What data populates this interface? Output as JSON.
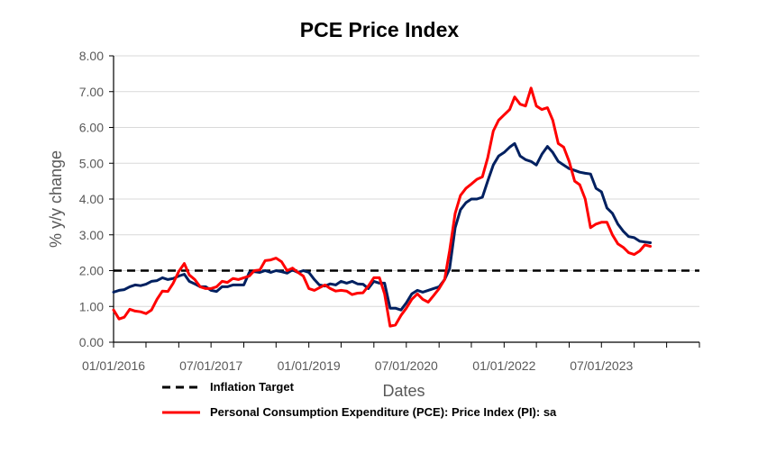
{
  "chart_data": {
    "type": "line",
    "title": "PCE Price Index",
    "xlabel": "Dates",
    "ylabel": "% y/y change",
    "ylim": [
      0,
      8
    ],
    "yticks": [
      "0.00",
      "1.00",
      "2.00",
      "3.00",
      "4.00",
      "5.00",
      "6.00",
      "7.00",
      "8.00"
    ],
    "xticks": [
      {
        "date": "2016-01-01",
        "label": "01/01/2016"
      },
      {
        "date": "2017-07-01",
        "label": "07/01/2017"
      },
      {
        "date": "2019-01-01",
        "label": "01/01/2019"
      },
      {
        "date": "2020-07-01",
        "label": "07/01/2020"
      },
      {
        "date": "2022-01-01",
        "label": "01/01/2022"
      },
      {
        "date": "2023-07-01",
        "label": "07/01/2023"
      }
    ],
    "xlim": [
      "2016-01-01",
      "2025-01-01"
    ],
    "grid": "horizontal",
    "legend_position": "bottom",
    "series": [
      {
        "name": "Inflation Target",
        "color": "#000000",
        "style": "dashed",
        "values": [
          [
            "2016-01-01",
            2.0
          ],
          [
            "2025-01-01",
            2.0
          ]
        ]
      },
      {
        "name": "Personal Consumption Expenditure (PCE): Price Index (PI): sa",
        "color": "#ff0000",
        "style": "solid",
        "values": [
          [
            "2016-01-01",
            0.9
          ],
          [
            "2016-02-01",
            0.65
          ],
          [
            "2016-03-01",
            0.7
          ],
          [
            "2016-04-01",
            0.92
          ],
          [
            "2016-05-01",
            0.87
          ],
          [
            "2016-06-01",
            0.85
          ],
          [
            "2016-07-01",
            0.8
          ],
          [
            "2016-08-01",
            0.9
          ],
          [
            "2016-09-01",
            1.2
          ],
          [
            "2016-10-01",
            1.43
          ],
          [
            "2016-11-01",
            1.42
          ],
          [
            "2016-12-01",
            1.65
          ],
          [
            "2017-01-01",
            1.98
          ],
          [
            "2017-02-01",
            2.2
          ],
          [
            "2017-03-01",
            1.88
          ],
          [
            "2017-04-01",
            1.75
          ],
          [
            "2017-05-01",
            1.55
          ],
          [
            "2017-06-01",
            1.5
          ],
          [
            "2017-07-01",
            1.5
          ],
          [
            "2017-08-01",
            1.55
          ],
          [
            "2017-09-01",
            1.7
          ],
          [
            "2017-10-01",
            1.67
          ],
          [
            "2017-11-01",
            1.78
          ],
          [
            "2017-12-01",
            1.75
          ],
          [
            "2018-01-01",
            1.8
          ],
          [
            "2018-02-01",
            1.85
          ],
          [
            "2018-03-01",
            2.0
          ],
          [
            "2018-04-01",
            2.02
          ],
          [
            "2018-05-01",
            2.28
          ],
          [
            "2018-06-01",
            2.3
          ],
          [
            "2018-07-01",
            2.35
          ],
          [
            "2018-08-01",
            2.25
          ],
          [
            "2018-09-01",
            2.0
          ],
          [
            "2018-10-01",
            2.07
          ],
          [
            "2018-11-01",
            1.95
          ],
          [
            "2018-12-01",
            1.85
          ],
          [
            "2019-01-01",
            1.5
          ],
          [
            "2019-02-01",
            1.45
          ],
          [
            "2019-03-01",
            1.52
          ],
          [
            "2019-04-01",
            1.6
          ],
          [
            "2019-05-01",
            1.5
          ],
          [
            "2019-06-01",
            1.43
          ],
          [
            "2019-07-01",
            1.45
          ],
          [
            "2019-08-01",
            1.43
          ],
          [
            "2019-09-01",
            1.33
          ],
          [
            "2019-10-01",
            1.37
          ],
          [
            "2019-11-01",
            1.38
          ],
          [
            "2019-12-01",
            1.57
          ],
          [
            "2020-01-01",
            1.8
          ],
          [
            "2020-02-01",
            1.8
          ],
          [
            "2020-03-01",
            1.35
          ],
          [
            "2020-04-01",
            0.45
          ],
          [
            "2020-05-01",
            0.48
          ],
          [
            "2020-06-01",
            0.75
          ],
          [
            "2020-07-01",
            0.95
          ],
          [
            "2020-08-01",
            1.2
          ],
          [
            "2020-09-01",
            1.35
          ],
          [
            "2020-10-01",
            1.2
          ],
          [
            "2020-11-01",
            1.12
          ],
          [
            "2020-12-01",
            1.3
          ],
          [
            "2021-01-01",
            1.5
          ],
          [
            "2021-02-01",
            1.75
          ],
          [
            "2021-03-01",
            2.55
          ],
          [
            "2021-04-01",
            3.6
          ],
          [
            "2021-05-01",
            4.1
          ],
          [
            "2021-06-01",
            4.3
          ],
          [
            "2021-07-01",
            4.42
          ],
          [
            "2021-08-01",
            4.55
          ],
          [
            "2021-09-01",
            4.62
          ],
          [
            "2021-10-01",
            5.15
          ],
          [
            "2021-11-01",
            5.9
          ],
          [
            "2021-12-01",
            6.2
          ],
          [
            "2022-01-01",
            6.35
          ],
          [
            "2022-02-01",
            6.5
          ],
          [
            "2022-03-01",
            6.85
          ],
          [
            "2022-04-01",
            6.65
          ],
          [
            "2022-05-01",
            6.6
          ],
          [
            "2022-06-01",
            7.1
          ],
          [
            "2022-07-01",
            6.6
          ],
          [
            "2022-08-01",
            6.5
          ],
          [
            "2022-09-01",
            6.55
          ],
          [
            "2022-10-01",
            6.2
          ],
          [
            "2022-11-01",
            5.55
          ],
          [
            "2022-12-01",
            5.45
          ],
          [
            "2023-01-01",
            5.05
          ],
          [
            "2023-02-01",
            4.5
          ],
          [
            "2023-03-01",
            4.4
          ],
          [
            "2023-04-01",
            4.0
          ],
          [
            "2023-05-01",
            3.2
          ],
          [
            "2023-06-01",
            3.3
          ],
          [
            "2023-07-01",
            3.35
          ],
          [
            "2023-08-01",
            3.35
          ],
          [
            "2023-09-01",
            3.0
          ],
          [
            "2023-10-01",
            2.75
          ],
          [
            "2023-11-01",
            2.65
          ],
          [
            "2023-12-01",
            2.5
          ],
          [
            "2024-01-01",
            2.45
          ],
          [
            "2024-02-01",
            2.55
          ],
          [
            "2024-03-01",
            2.72
          ],
          [
            "2024-04-01",
            2.68
          ]
        ]
      },
      {
        "name": "",
        "color": "#002060",
        "style": "solid",
        "values": [
          [
            "2016-01-01",
            1.4
          ],
          [
            "2016-02-01",
            1.45
          ],
          [
            "2016-03-01",
            1.47
          ],
          [
            "2016-04-01",
            1.55
          ],
          [
            "2016-05-01",
            1.6
          ],
          [
            "2016-06-01",
            1.58
          ],
          [
            "2016-07-01",
            1.62
          ],
          [
            "2016-08-01",
            1.7
          ],
          [
            "2016-09-01",
            1.72
          ],
          [
            "2016-10-01",
            1.8
          ],
          [
            "2016-11-01",
            1.75
          ],
          [
            "2016-12-01",
            1.78
          ],
          [
            "2017-01-01",
            1.85
          ],
          [
            "2017-02-01",
            1.9
          ],
          [
            "2017-03-01",
            1.7
          ],
          [
            "2017-04-01",
            1.63
          ],
          [
            "2017-05-01",
            1.55
          ],
          [
            "2017-06-01",
            1.55
          ],
          [
            "2017-07-01",
            1.45
          ],
          [
            "2017-08-01",
            1.42
          ],
          [
            "2017-09-01",
            1.55
          ],
          [
            "2017-10-01",
            1.55
          ],
          [
            "2017-11-01",
            1.6
          ],
          [
            "2017-12-01",
            1.6
          ],
          [
            "2018-01-01",
            1.6
          ],
          [
            "2018-02-01",
            1.95
          ],
          [
            "2018-03-01",
            1.97
          ],
          [
            "2018-04-01",
            1.95
          ],
          [
            "2018-05-01",
            2.0
          ],
          [
            "2018-06-01",
            1.95
          ],
          [
            "2018-07-01",
            2.0
          ],
          [
            "2018-08-01",
            1.97
          ],
          [
            "2018-09-01",
            1.93
          ],
          [
            "2018-10-01",
            2.02
          ],
          [
            "2018-11-01",
            1.95
          ],
          [
            "2018-12-01",
            2.0
          ],
          [
            "2019-01-01",
            1.95
          ],
          [
            "2019-02-01",
            1.75
          ],
          [
            "2019-03-01",
            1.6
          ],
          [
            "2019-04-01",
            1.57
          ],
          [
            "2019-05-01",
            1.63
          ],
          [
            "2019-06-01",
            1.6
          ],
          [
            "2019-07-01",
            1.7
          ],
          [
            "2019-08-01",
            1.65
          ],
          [
            "2019-09-01",
            1.7
          ],
          [
            "2019-10-01",
            1.63
          ],
          [
            "2019-11-01",
            1.62
          ],
          [
            "2019-12-01",
            1.5
          ],
          [
            "2020-01-01",
            1.7
          ],
          [
            "2020-02-01",
            1.65
          ],
          [
            "2020-03-01",
            1.65
          ],
          [
            "2020-04-01",
            0.95
          ],
          [
            "2020-05-01",
            0.95
          ],
          [
            "2020-06-01",
            0.9
          ],
          [
            "2020-07-01",
            1.1
          ],
          [
            "2020-08-01",
            1.35
          ],
          [
            "2020-09-01",
            1.45
          ],
          [
            "2020-10-01",
            1.4
          ],
          [
            "2020-11-01",
            1.45
          ],
          [
            "2020-12-01",
            1.5
          ],
          [
            "2021-01-01",
            1.55
          ],
          [
            "2021-02-01",
            1.75
          ],
          [
            "2021-03-01",
            2.05
          ],
          [
            "2021-04-01",
            3.2
          ],
          [
            "2021-05-01",
            3.7
          ],
          [
            "2021-06-01",
            3.9
          ],
          [
            "2021-07-01",
            4.0
          ],
          [
            "2021-08-01",
            4.0
          ],
          [
            "2021-09-01",
            4.05
          ],
          [
            "2021-10-01",
            4.5
          ],
          [
            "2021-11-01",
            4.95
          ],
          [
            "2021-12-01",
            5.2
          ],
          [
            "2022-01-01",
            5.3
          ],
          [
            "2022-02-01",
            5.45
          ],
          [
            "2022-03-01",
            5.55
          ],
          [
            "2022-04-01",
            5.2
          ],
          [
            "2022-05-01",
            5.1
          ],
          [
            "2022-06-01",
            5.05
          ],
          [
            "2022-07-01",
            4.95
          ],
          [
            "2022-08-01",
            5.25
          ],
          [
            "2022-09-01",
            5.47
          ],
          [
            "2022-10-01",
            5.3
          ],
          [
            "2022-11-01",
            5.05
          ],
          [
            "2022-12-01",
            4.95
          ],
          [
            "2023-01-01",
            4.85
          ],
          [
            "2023-02-01",
            4.8
          ],
          [
            "2023-03-01",
            4.75
          ],
          [
            "2023-04-01",
            4.72
          ],
          [
            "2023-05-01",
            4.7
          ],
          [
            "2023-06-01",
            4.3
          ],
          [
            "2023-07-01",
            4.2
          ],
          [
            "2023-08-01",
            3.75
          ],
          [
            "2023-09-01",
            3.6
          ],
          [
            "2023-10-01",
            3.3
          ],
          [
            "2023-11-01",
            3.1
          ],
          [
            "2023-12-01",
            2.95
          ],
          [
            "2024-01-01",
            2.92
          ],
          [
            "2024-02-01",
            2.82
          ],
          [
            "2024-03-01",
            2.8
          ],
          [
            "2024-04-01",
            2.78
          ]
        ]
      }
    ],
    "legend": [
      {
        "label": "Inflation Target",
        "color": "#000000",
        "style": "dashed"
      },
      {
        "label": "Personal Consumption Expenditure (PCE): Price Index (PI): sa",
        "color": "#ff0000",
        "style": "solid"
      }
    ]
  }
}
